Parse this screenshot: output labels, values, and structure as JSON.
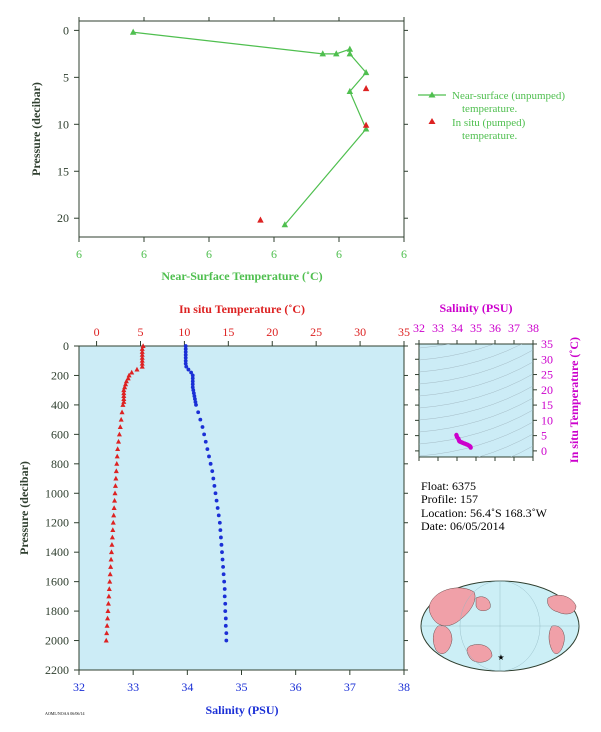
{
  "colors": {
    "green": "#4fbf4f",
    "red": "#dd2222",
    "blue": "#1a2fd6",
    "magenta": "#cc00cc",
    "axis_dark": "#2f3f2f",
    "panel_bg": "#ccecf6",
    "land": "#f0a0a8",
    "ocean": "#cceff6"
  },
  "info": {
    "float": "Float:  6375",
    "profile": "Profile:  157",
    "location": "Location:  56.4˚S  168.3˚W",
    "date": "Date:  06/05/2014"
  },
  "footer_text": "AOML/NOAA 06/06/14",
  "chart_data": [
    {
      "type": "line",
      "xlabel": "Near-Surface Temperature (˚C)",
      "ylabel": "Pressure (decibar)",
      "x_tick_labels": [
        "6",
        "6",
        "6",
        "6",
        "6",
        "6"
      ],
      "y_ticks": [
        0,
        5,
        10,
        15,
        20
      ],
      "xlim": [
        0,
        6
      ],
      "ylim": [
        22,
        -1
      ],
      "legend_position": "right",
      "series": [
        {
          "name": "Near-surface (unpumped) temperature.",
          "color": "#4fbf4f",
          "marker": "triangle",
          "points": [
            {
              "x": 1.0,
              "y": 0.2
            },
            {
              "x": 4.5,
              "y": 2.5
            },
            {
              "x": 4.75,
              "y": 2.5
            },
            {
              "x": 5.0,
              "y": 2.0
            },
            {
              "x": 5.0,
              "y": 2.5
            },
            {
              "x": 5.3,
              "y": 4.5
            },
            {
              "x": 5.0,
              "y": 6.5
            },
            {
              "x": 5.3,
              "y": 10.5
            },
            {
              "x": 3.8,
              "y": 20.7
            }
          ]
        },
        {
          "name": "In situ (pumped) temperature.",
          "color": "#dd2222",
          "marker": "triangle",
          "points": [
            {
              "x": 5.3,
              "y": 6.2
            },
            {
              "x": 5.3,
              "y": 10.1
            },
            {
              "x": 3.35,
              "y": 20.2
            }
          ]
        }
      ]
    },
    {
      "type": "scatter",
      "ylabel": "Pressure (decibar)",
      "y_ticks": [
        0,
        200,
        400,
        600,
        800,
        1000,
        1200,
        1400,
        1600,
        1800,
        2000,
        2200
      ],
      "ylim": [
        2200,
        0
      ],
      "top_axis": {
        "label": "In situ Temperature (˚C)",
        "ticks": [
          0,
          5,
          10,
          15,
          20,
          25,
          30,
          35
        ],
        "range": [
          -2,
          35
        ]
      },
      "bottom_axis": {
        "label": "Salinity (PSU)",
        "ticks": [
          32,
          33,
          34,
          35,
          36,
          37,
          38
        ],
        "range": [
          32,
          38
        ]
      },
      "series": [
        {
          "name": "Temperature",
          "color": "#dd2222",
          "marker": "triangle",
          "points": [
            {
              "x": 5.3,
              "y": 0
            },
            {
              "x": 5.2,
              "y": 20
            },
            {
              "x": 5.2,
              "y": 40
            },
            {
              "x": 5.2,
              "y": 60
            },
            {
              "x": 5.2,
              "y": 80
            },
            {
              "x": 5.2,
              "y": 100
            },
            {
              "x": 5.2,
              "y": 120
            },
            {
              "x": 5.2,
              "y": 140
            },
            {
              "x": 4.6,
              "y": 160
            },
            {
              "x": 4.0,
              "y": 180
            },
            {
              "x": 3.7,
              "y": 200
            },
            {
              "x": 3.6,
              "y": 220
            },
            {
              "x": 3.4,
              "y": 240
            },
            {
              "x": 3.3,
              "y": 260
            },
            {
              "x": 3.2,
              "y": 280
            },
            {
              "x": 3.1,
              "y": 300
            },
            {
              "x": 3.1,
              "y": 320
            },
            {
              "x": 3.1,
              "y": 340
            },
            {
              "x": 3.1,
              "y": 360
            },
            {
              "x": 3.1,
              "y": 380
            },
            {
              "x": 3.0,
              "y": 400
            },
            {
              "x": 2.9,
              "y": 450
            },
            {
              "x": 2.8,
              "y": 500
            },
            {
              "x": 2.7,
              "y": 550
            },
            {
              "x": 2.6,
              "y": 600
            },
            {
              "x": 2.5,
              "y": 650
            },
            {
              "x": 2.4,
              "y": 700
            },
            {
              "x": 2.35,
              "y": 750
            },
            {
              "x": 2.3,
              "y": 800
            },
            {
              "x": 2.25,
              "y": 850
            },
            {
              "x": 2.2,
              "y": 900
            },
            {
              "x": 2.15,
              "y": 950
            },
            {
              "x": 2.1,
              "y": 1000
            },
            {
              "x": 2.05,
              "y": 1050
            },
            {
              "x": 2.0,
              "y": 1100
            },
            {
              "x": 1.95,
              "y": 1150
            },
            {
              "x": 1.9,
              "y": 1200
            },
            {
              "x": 1.85,
              "y": 1250
            },
            {
              "x": 1.8,
              "y": 1300
            },
            {
              "x": 1.75,
              "y": 1350
            },
            {
              "x": 1.7,
              "y": 1400
            },
            {
              "x": 1.65,
              "y": 1450
            },
            {
              "x": 1.6,
              "y": 1500
            },
            {
              "x": 1.55,
              "y": 1550
            },
            {
              "x": 1.5,
              "y": 1600
            },
            {
              "x": 1.45,
              "y": 1650
            },
            {
              "x": 1.4,
              "y": 1700
            },
            {
              "x": 1.35,
              "y": 1750
            },
            {
              "x": 1.3,
              "y": 1800
            },
            {
              "x": 1.25,
              "y": 1850
            },
            {
              "x": 1.2,
              "y": 1900
            },
            {
              "x": 1.15,
              "y": 1950
            },
            {
              "x": 1.1,
              "y": 2000
            }
          ]
        },
        {
          "name": "Salinity",
          "color": "#1a2fd6",
          "marker": "circle",
          "points": [
            {
              "x": 33.97,
              "y": 0
            },
            {
              "x": 33.97,
              "y": 20
            },
            {
              "x": 33.97,
              "y": 40
            },
            {
              "x": 33.97,
              "y": 60
            },
            {
              "x": 33.97,
              "y": 80
            },
            {
              "x": 33.97,
              "y": 100
            },
            {
              "x": 33.97,
              "y": 120
            },
            {
              "x": 33.98,
              "y": 140
            },
            {
              "x": 34.02,
              "y": 160
            },
            {
              "x": 34.07,
              "y": 180
            },
            {
              "x": 34.1,
              "y": 200
            },
            {
              "x": 34.1,
              "y": 220
            },
            {
              "x": 34.1,
              "y": 240
            },
            {
              "x": 34.1,
              "y": 260
            },
            {
              "x": 34.1,
              "y": 280
            },
            {
              "x": 34.11,
              "y": 300
            },
            {
              "x": 34.12,
              "y": 320
            },
            {
              "x": 34.13,
              "y": 340
            },
            {
              "x": 34.14,
              "y": 360
            },
            {
              "x": 34.15,
              "y": 380
            },
            {
              "x": 34.16,
              "y": 400
            },
            {
              "x": 34.2,
              "y": 450
            },
            {
              "x": 34.24,
              "y": 500
            },
            {
              "x": 34.28,
              "y": 550
            },
            {
              "x": 34.31,
              "y": 600
            },
            {
              "x": 34.34,
              "y": 650
            },
            {
              "x": 34.37,
              "y": 700
            },
            {
              "x": 34.4,
              "y": 750
            },
            {
              "x": 34.43,
              "y": 800
            },
            {
              "x": 34.46,
              "y": 850
            },
            {
              "x": 34.48,
              "y": 900
            },
            {
              "x": 34.5,
              "y": 950
            },
            {
              "x": 34.52,
              "y": 1000
            },
            {
              "x": 34.54,
              "y": 1050
            },
            {
              "x": 34.56,
              "y": 1100
            },
            {
              "x": 34.58,
              "y": 1150
            },
            {
              "x": 34.6,
              "y": 1200
            },
            {
              "x": 34.61,
              "y": 1250
            },
            {
              "x": 34.62,
              "y": 1300
            },
            {
              "x": 34.63,
              "y": 1350
            },
            {
              "x": 34.64,
              "y": 1400
            },
            {
              "x": 34.65,
              "y": 1450
            },
            {
              "x": 34.66,
              "y": 1500
            },
            {
              "x": 34.67,
              "y": 1550
            },
            {
              "x": 34.68,
              "y": 1600
            },
            {
              "x": 34.69,
              "y": 1650
            },
            {
              "x": 34.69,
              "y": 1700
            },
            {
              "x": 34.7,
              "y": 1750
            },
            {
              "x": 34.7,
              "y": 1800
            },
            {
              "x": 34.71,
              "y": 1850
            },
            {
              "x": 34.71,
              "y": 1900
            },
            {
              "x": 34.72,
              "y": 1950
            },
            {
              "x": 34.72,
              "y": 2000
            }
          ]
        }
      ]
    },
    {
      "type": "scatter",
      "top_axis": {
        "label": "Salinity (PSU)",
        "ticks": [
          32,
          33,
          34,
          35,
          36,
          37,
          38
        ],
        "range": [
          32,
          38
        ]
      },
      "right_axis": {
        "label": "In situ Temperature (˚C)",
        "ticks": [
          0,
          5,
          10,
          15,
          20,
          25,
          30,
          35
        ],
        "range": [
          -2,
          35
        ]
      },
      "grid": "density contours",
      "series": [
        {
          "name": "T-S",
          "color": "#cc00cc",
          "marker": "dot",
          "points": [
            {
              "x": 33.97,
              "y": 5.2
            },
            {
              "x": 34.0,
              "y": 4.6
            },
            {
              "x": 34.07,
              "y": 4.0
            },
            {
              "x": 34.1,
              "y": 3.6
            },
            {
              "x": 34.12,
              "y": 3.2
            },
            {
              "x": 34.16,
              "y": 3.0
            },
            {
              "x": 34.24,
              "y": 2.8
            },
            {
              "x": 34.31,
              "y": 2.6
            },
            {
              "x": 34.4,
              "y": 2.4
            },
            {
              "x": 34.48,
              "y": 2.2
            },
            {
              "x": 34.56,
              "y": 2.0
            },
            {
              "x": 34.64,
              "y": 1.7
            },
            {
              "x": 34.7,
              "y": 1.4
            },
            {
              "x": 34.72,
              "y": 1.1
            }
          ]
        }
      ]
    }
  ]
}
